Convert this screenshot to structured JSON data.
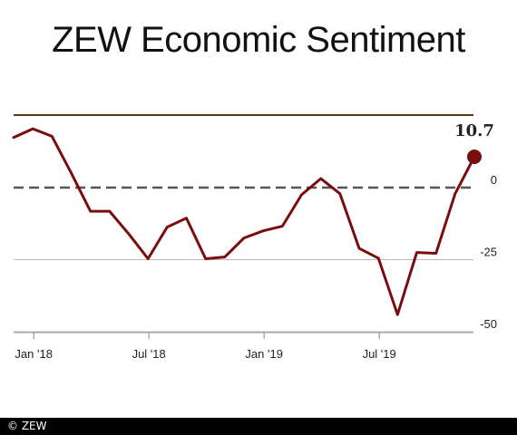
{
  "title": "ZEW Economic Sentiment",
  "footer": "© ZEW",
  "colors": {
    "series": "#7a0e0e",
    "top_line": "#5a3a0a",
    "zero_line": "#555555",
    "grid": "#bbbbbb"
  },
  "chart_data": {
    "type": "line",
    "title": "ZEW Economic Sentiment",
    "xlabel": "",
    "ylabel": "",
    "x_ticks": [
      "Jan '18",
      "Jul '18",
      "Jan '19",
      "Jul '19"
    ],
    "y_ticks": [
      0,
      -25,
      -50
    ],
    "ylim": [
      -50,
      25
    ],
    "grid": "horizontal",
    "series": [
      {
        "name": "",
        "x": [
          "2017-12",
          "2018-01",
          "2018-02",
          "2018-03",
          "2018-04",
          "2018-05",
          "2018-06",
          "2018-07",
          "2018-08",
          "2018-09",
          "2018-10",
          "2018-11",
          "2018-12",
          "2019-01",
          "2019-02",
          "2019-03",
          "2019-04",
          "2019-05",
          "2019-06",
          "2019-07",
          "2019-08",
          "2019-09",
          "2019-10",
          "2019-11",
          "2019-12"
        ],
        "values": [
          17.4,
          20.4,
          17.8,
          5.1,
          -8.2,
          -8.2,
          -16.1,
          -24.7,
          -13.7,
          -10.6,
          -24.7,
          -24.1,
          -17.5,
          -15.0,
          -13.4,
          -2.5,
          3.1,
          -2.1,
          -21.1,
          -24.5,
          -44.1,
          -22.5,
          -22.8,
          -2.1,
          10.7
        ]
      }
    ],
    "annotations": [
      {
        "text": "10.7",
        "target": "last-point"
      }
    ]
  }
}
